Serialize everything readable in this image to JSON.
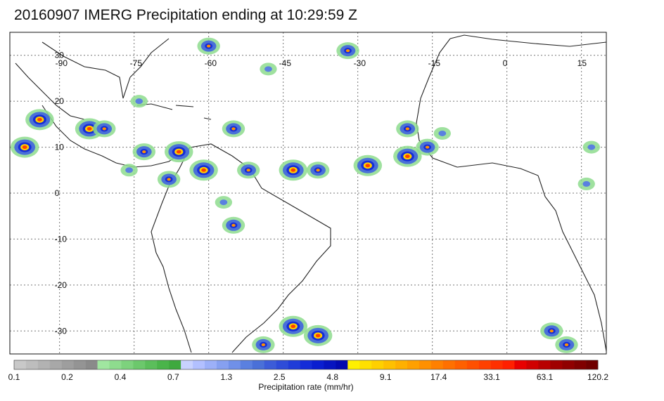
{
  "title": "20160907 IMERG Precipitation ending at 10:29:59 Z",
  "map": {
    "lon_ticks": [
      "-90",
      "-75",
      "-60",
      "-45",
      "-30",
      "-15",
      "0",
      "15"
    ],
    "lat_ticks": [
      "30",
      "20",
      "10",
      "0",
      "-10",
      "-20",
      "-30"
    ],
    "lon_range": [
      -100,
      20
    ],
    "lat_range": [
      -35,
      35
    ],
    "gridlines": true
  },
  "colorbar": {
    "title": "Precipitation rate (mm/hr)",
    "labels": [
      "0.1",
      "0.2",
      "0.4",
      "0.7",
      "1.3",
      "2.5",
      "4.8",
      "9.1",
      "17.4",
      "33.1",
      "63.1",
      "120.2"
    ],
    "colors": [
      "#c8c8c8",
      "#bdbdbd",
      "#b2b2b2",
      "#a8a8a8",
      "#9e9e9e",
      "#949494",
      "#8a8a8a",
      "#a0e6a0",
      "#8edc8e",
      "#7dd27d",
      "#6cc86c",
      "#5bbe5b",
      "#4ab44a",
      "#3fa93f",
      "#c8d2ff",
      "#b2c0ff",
      "#9cb0f8",
      "#86a0f0",
      "#7090e8",
      "#5a80e0",
      "#4a70d8",
      "#3c5cd8",
      "#2e4cd8",
      "#203cd8",
      "#142cd8",
      "#0a1ed0",
      "#0614c0",
      "#020ab0",
      "#fff000",
      "#ffe000",
      "#ffd000",
      "#ffc000",
      "#ffb000",
      "#ffa000",
      "#ff9000",
      "#ff8000",
      "#ff7000",
      "#ff6000",
      "#ff5000",
      "#ff4000",
      "#ff3000",
      "#ff2000",
      "#e80000",
      "#d00000",
      "#b80000",
      "#a00000",
      "#900000",
      "#800000",
      "#700000"
    ]
  },
  "precip_cells": [
    {
      "lon": -94,
      "lat": 16,
      "level": "high"
    },
    {
      "lon": -84,
      "lat": 14,
      "level": "high"
    },
    {
      "lon": -81,
      "lat": 14,
      "level": "med"
    },
    {
      "lon": -97,
      "lat": 10,
      "level": "high"
    },
    {
      "lon": -73,
      "lat": 9,
      "level": "med"
    },
    {
      "lon": -66,
      "lat": 9,
      "level": "high"
    },
    {
      "lon": -61,
      "lat": 5,
      "level": "high"
    },
    {
      "lon": -52,
      "lat": 5,
      "level": "med"
    },
    {
      "lon": -43,
      "lat": 5,
      "level": "high"
    },
    {
      "lon": -38,
      "lat": 5,
      "level": "med"
    },
    {
      "lon": -28,
      "lat": 6,
      "level": "high"
    },
    {
      "lon": -20,
      "lat": 8,
      "level": "high"
    },
    {
      "lon": -16,
      "lat": 10,
      "level": "med"
    },
    {
      "lon": -20,
      "lat": 14,
      "level": "med"
    },
    {
      "lon": -13,
      "lat": 13,
      "level": "low"
    },
    {
      "lon": -60,
      "lat": 32,
      "level": "med"
    },
    {
      "lon": -32,
      "lat": 31,
      "level": "med"
    },
    {
      "lon": -48,
      "lat": 27,
      "level": "low"
    },
    {
      "lon": -55,
      "lat": 14,
      "level": "med"
    },
    {
      "lon": -55,
      "lat": -7,
      "level": "med"
    },
    {
      "lon": -57,
      "lat": -2,
      "level": "low"
    },
    {
      "lon": -43,
      "lat": -29,
      "level": "high"
    },
    {
      "lon": -49,
      "lat": -33,
      "level": "med"
    },
    {
      "lon": -38,
      "lat": -31,
      "level": "high"
    },
    {
      "lon": 9,
      "lat": -30,
      "level": "med"
    },
    {
      "lon": 12,
      "lat": -33,
      "level": "med"
    },
    {
      "lon": 17,
      "lat": 10,
      "level": "low"
    },
    {
      "lon": 16,
      "lat": 2,
      "level": "low"
    },
    {
      "lon": -74,
      "lat": 20,
      "level": "low"
    },
    {
      "lon": -68,
      "lat": 3,
      "level": "med"
    },
    {
      "lon": -76,
      "lat": 5,
      "level": "low"
    }
  ]
}
